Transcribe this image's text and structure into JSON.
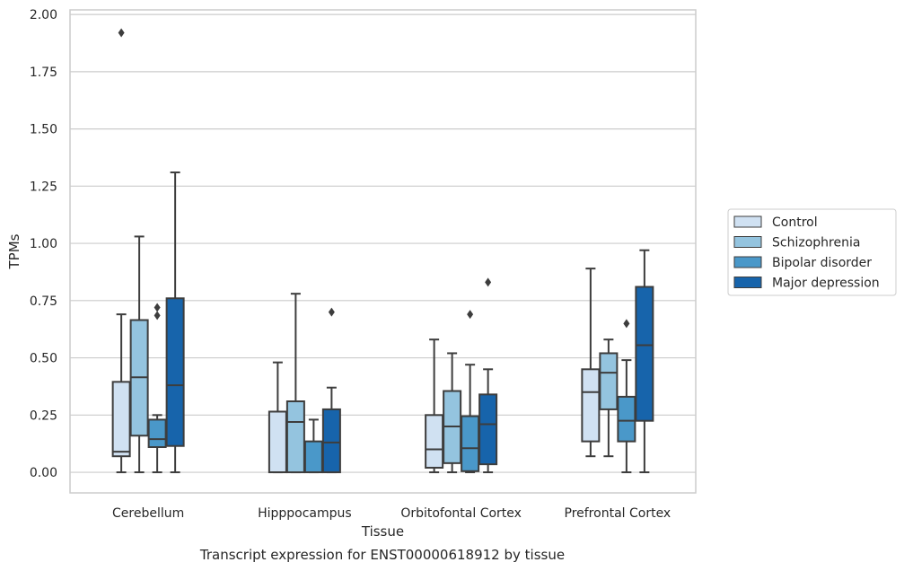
{
  "chart_data": {
    "type": "box",
    "xlabel": "Tissue",
    "ylabel": "TPMs",
    "caption": "Transcript expression for ENST00000618912 by tissue",
    "ylim": [
      -0.09,
      2.02
    ],
    "yticks": [
      "0.00",
      "0.25",
      "0.50",
      "0.75",
      "1.00",
      "1.25",
      "1.50",
      "1.75",
      "2.00"
    ],
    "grid": "horizontal",
    "legend_position": "right",
    "categories": [
      "Cerebellum",
      "Hipppocampus",
      "Orbitofontal Cortex",
      "Prefrontal Cortex"
    ],
    "series": [
      {
        "name": "Control",
        "color": "#d0e1f2",
        "boxes": [
          {
            "q1": 0.07,
            "median": 0.09,
            "q3": 0.395,
            "whisker_low": 0.0,
            "whisker_high": 0.69,
            "outliers": [
              1.92
            ]
          },
          {
            "q1": 0.0,
            "median": 0.0,
            "q3": 0.265,
            "whisker_low": 0.0,
            "whisker_high": 0.48,
            "outliers": []
          },
          {
            "q1": 0.02,
            "median": 0.1,
            "q3": 0.25,
            "whisker_low": 0.0,
            "whisker_high": 0.58,
            "outliers": []
          },
          {
            "q1": 0.135,
            "median": 0.35,
            "q3": 0.45,
            "whisker_low": 0.07,
            "whisker_high": 0.89,
            "outliers": []
          }
        ]
      },
      {
        "name": "Schizophrenia",
        "color": "#94c4df",
        "boxes": [
          {
            "q1": 0.16,
            "median": 0.415,
            "q3": 0.665,
            "whisker_low": 0.0,
            "whisker_high": 1.03,
            "outliers": []
          },
          {
            "q1": 0.0,
            "median": 0.22,
            "q3": 0.31,
            "whisker_low": 0.0,
            "whisker_high": 0.78,
            "outliers": []
          },
          {
            "q1": 0.04,
            "median": 0.2,
            "q3": 0.355,
            "whisker_low": 0.0,
            "whisker_high": 0.52,
            "outliers": []
          },
          {
            "q1": 0.275,
            "median": 0.435,
            "q3": 0.52,
            "whisker_low": 0.07,
            "whisker_high": 0.58,
            "outliers": []
          }
        ]
      },
      {
        "name": "Bipolar disorder",
        "color": "#4a98c9",
        "boxes": [
          {
            "q1": 0.11,
            "median": 0.145,
            "q3": 0.23,
            "whisker_low": 0.0,
            "whisker_high": 0.25,
            "outliers": [
              0.685,
              0.72
            ]
          },
          {
            "q1": 0.0,
            "median": 0.0,
            "q3": 0.135,
            "whisker_low": 0.0,
            "whisker_high": 0.23,
            "outliers": []
          },
          {
            "q1": 0.005,
            "median": 0.105,
            "q3": 0.245,
            "whisker_low": 0.0,
            "whisker_high": 0.47,
            "outliers": [
              0.69
            ]
          },
          {
            "q1": 0.135,
            "median": 0.225,
            "q3": 0.33,
            "whisker_low": 0.0,
            "whisker_high": 0.49,
            "outliers": [
              0.65
            ]
          }
        ]
      },
      {
        "name": "Major depression",
        "color": "#1764ab",
        "boxes": [
          {
            "q1": 0.115,
            "median": 0.38,
            "q3": 0.76,
            "whisker_low": 0.0,
            "whisker_high": 1.31,
            "outliers": []
          },
          {
            "q1": 0.0,
            "median": 0.13,
            "q3": 0.275,
            "whisker_low": 0.0,
            "whisker_high": 0.37,
            "outliers": [
              0.7
            ]
          },
          {
            "q1": 0.035,
            "median": 0.21,
            "q3": 0.34,
            "whisker_low": 0.0,
            "whisker_high": 0.45,
            "outliers": [
              0.83
            ]
          },
          {
            "q1": 0.225,
            "median": 0.555,
            "q3": 0.81,
            "whisker_low": 0.0,
            "whisker_high": 0.97,
            "outliers": []
          }
        ]
      }
    ]
  }
}
